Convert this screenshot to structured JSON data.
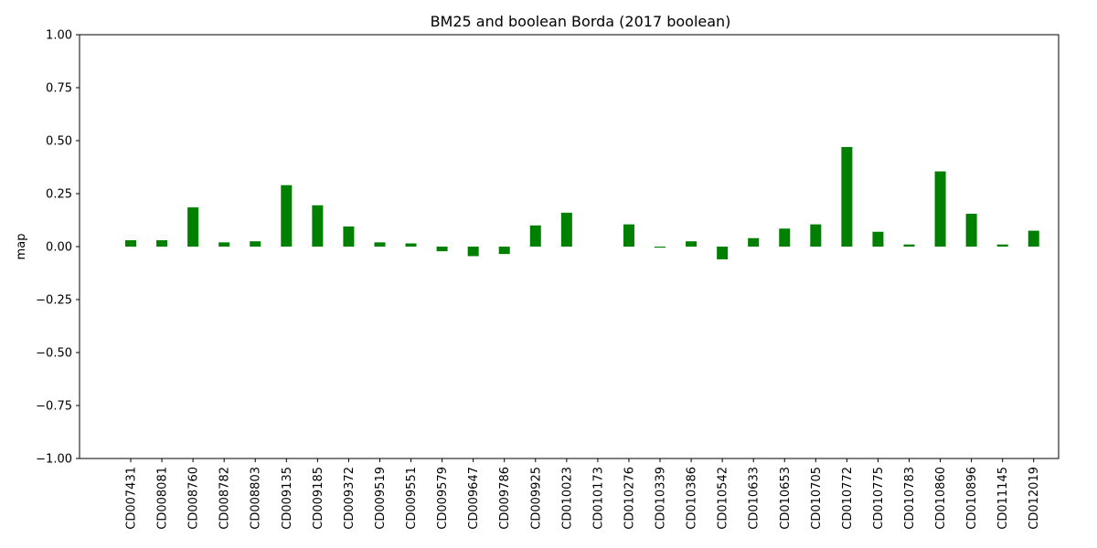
{
  "chart_data": {
    "type": "bar",
    "title": "BM25 and boolean Borda (2017 boolean)",
    "xlabel": "",
    "ylabel": "map",
    "ylim": [
      -1.0,
      1.0
    ],
    "yticks": [
      "-1.00",
      "-0.75",
      "-0.50",
      "-0.25",
      "0.00",
      "0.25",
      "0.50",
      "0.75",
      "1.00"
    ],
    "grid": false,
    "bar_color": "#008000",
    "categories": [
      "CD007431",
      "CD008081",
      "CD008760",
      "CD008782",
      "CD008803",
      "CD009135",
      "CD009185",
      "CD009372",
      "CD009519",
      "CD009551",
      "CD009579",
      "CD009647",
      "CD009786",
      "CD009925",
      "CD010023",
      "CD010173",
      "CD010276",
      "CD010339",
      "CD010386",
      "CD010542",
      "CD010633",
      "CD010653",
      "CD010705",
      "CD010772",
      "CD010775",
      "CD010783",
      "CD010860",
      "CD010896",
      "CD011145",
      "CD012019"
    ],
    "values": [
      0.03,
      0.03,
      0.185,
      0.02,
      0.025,
      0.29,
      0.195,
      0.095,
      0.02,
      0.015,
      -0.022,
      -0.045,
      -0.035,
      0.1,
      0.16,
      0.0,
      0.105,
      -0.005,
      0.025,
      -0.06,
      0.04,
      0.085,
      0.105,
      0.47,
      0.07,
      0.01,
      0.355,
      0.155,
      0.01,
      0.075
    ]
  }
}
